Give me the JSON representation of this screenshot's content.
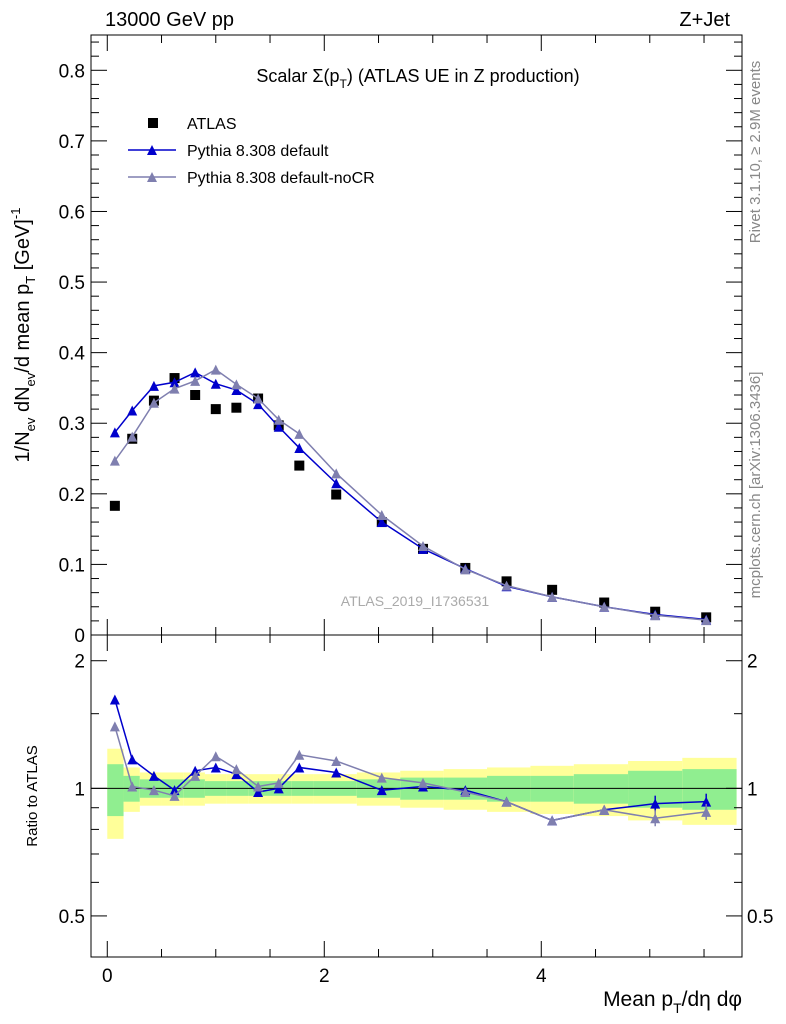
{
  "header": {
    "energy_label": "13000 GeV pp",
    "process_label": "Z+Jet"
  },
  "side_text": {
    "rivet": "Rivet 3.1.10, ≥ 2.9M events",
    "mcplots": "mcplots.cern.ch [arXiv:1306.3436]"
  },
  "main_panel": {
    "title": "Scalar Σ(p_T) (ATLAS UE in Z production)",
    "ylabel": "1/N_ev dN_ev/d mean p_T [GeV]^-1",
    "watermark": "ATLAS_2019_I1736531",
    "legend": [
      {
        "label": "ATLAS",
        "marker": "square",
        "color": "#000000"
      },
      {
        "label": "Pythia 8.308 default",
        "marker": "triangle",
        "color": "#0000cc"
      },
      {
        "label": "Pythia 8.308 default-noCR",
        "marker": "triangle",
        "color": "#7f7faf"
      }
    ],
    "y_ticks": [
      "0",
      "0.1",
      "0.2",
      "0.3",
      "0.4",
      "0.5",
      "0.6",
      "0.7",
      "0.8"
    ]
  },
  "ratio_panel": {
    "ylabel": "Ratio to ATLAS",
    "y_ticks": [
      "0.5",
      "1",
      "2"
    ]
  },
  "x_axis": {
    "label": "Mean p_T/dη dφ",
    "ticks": [
      "0",
      "2",
      "4"
    ]
  },
  "colors": {
    "data": "#000000",
    "default": "#0000cc",
    "nocr": "#7f7faf",
    "band_inner": "#90ee90",
    "band_outer": "#ffff99"
  },
  "chart_data": {
    "type": "scatter",
    "xlim": [
      -0.15,
      5.85
    ],
    "ylim": [
      0,
      0.85
    ],
    "ratio_ylim": [
      0.4,
      2.3
    ],
    "ratio_scale": "log",
    "grid": false,
    "legend_position": "top-left",
    "bins": [
      [
        0.0,
        0.15
      ],
      [
        0.15,
        0.3
      ],
      [
        0.3,
        0.5
      ],
      [
        0.5,
        0.7
      ],
      [
        0.7,
        0.9
      ],
      [
        0.9,
        1.1
      ],
      [
        1.1,
        1.3
      ],
      [
        1.3,
        1.5
      ],
      [
        1.5,
        1.7
      ],
      [
        1.7,
        1.9
      ],
      [
        1.9,
        2.3
      ],
      [
        2.3,
        2.7
      ],
      [
        2.7,
        3.1
      ],
      [
        3.1,
        3.5
      ],
      [
        3.5,
        3.9
      ],
      [
        3.9,
        4.3
      ],
      [
        4.3,
        4.8
      ],
      [
        4.8,
        5.3
      ],
      [
        5.3,
        5.8
      ]
    ],
    "x": [
      0.07,
      0.23,
      0.43,
      0.62,
      0.81,
      1.0,
      1.19,
      1.39,
      1.58,
      1.77,
      2.11,
      2.53,
      2.91,
      3.3,
      3.68,
      4.1,
      4.58,
      5.05,
      5.52
    ],
    "series": [
      {
        "name": "ATLAS",
        "values": [
          0.183,
          0.278,
          0.332,
          0.364,
          0.34,
          0.32,
          0.322,
          0.335,
          0.297,
          0.24,
          0.199,
          0.16,
          0.122,
          0.095,
          0.076,
          0.064,
          0.046,
          0.033,
          0.025
        ]
      },
      {
        "name": "Pythia 8.308 default",
        "values": [
          0.287,
          0.318,
          0.353,
          0.358,
          0.372,
          0.356,
          0.347,
          0.327,
          0.295,
          0.265,
          0.215,
          0.16,
          0.122,
          0.094,
          0.069,
          0.054,
          0.04,
          0.029,
          0.022
        ]
      },
      {
        "name": "Pythia 8.308 default-noCR",
        "values": [
          0.247,
          0.281,
          0.329,
          0.349,
          0.36,
          0.376,
          0.355,
          0.335,
          0.305,
          0.285,
          0.229,
          0.17,
          0.126,
          0.093,
          0.07,
          0.054,
          0.04,
          0.028,
          0.021
        ]
      }
    ],
    "ratio_series": [
      {
        "name": "Pythia 8.308 default",
        "values": [
          1.62,
          1.17,
          1.07,
          0.99,
          1.1,
          1.12,
          1.08,
          0.98,
          1.0,
          1.12,
          1.09,
          0.99,
          1.01,
          0.99,
          0.93,
          0.84,
          0.89,
          0.92,
          0.93
        ]
      },
      {
        "name": "Pythia 8.308 default-noCR",
        "values": [
          1.4,
          1.01,
          0.99,
          0.96,
          1.07,
          1.19,
          1.11,
          1.01,
          1.03,
          1.2,
          1.16,
          1.06,
          1.03,
          0.98,
          0.93,
          0.84,
          0.89,
          0.85,
          0.88
        ]
      }
    ],
    "band_inner": [
      0.14,
      0.07,
      0.05,
      0.05,
      0.05,
      0.04,
      0.04,
      0.04,
      0.04,
      0.04,
      0.04,
      0.05,
      0.06,
      0.06,
      0.07,
      0.07,
      0.08,
      0.1,
      0.11
    ],
    "band_outer": [
      0.24,
      0.12,
      0.09,
      0.09,
      0.09,
      0.08,
      0.08,
      0.08,
      0.08,
      0.08,
      0.08,
      0.09,
      0.1,
      0.11,
      0.12,
      0.13,
      0.14,
      0.16,
      0.18
    ]
  }
}
